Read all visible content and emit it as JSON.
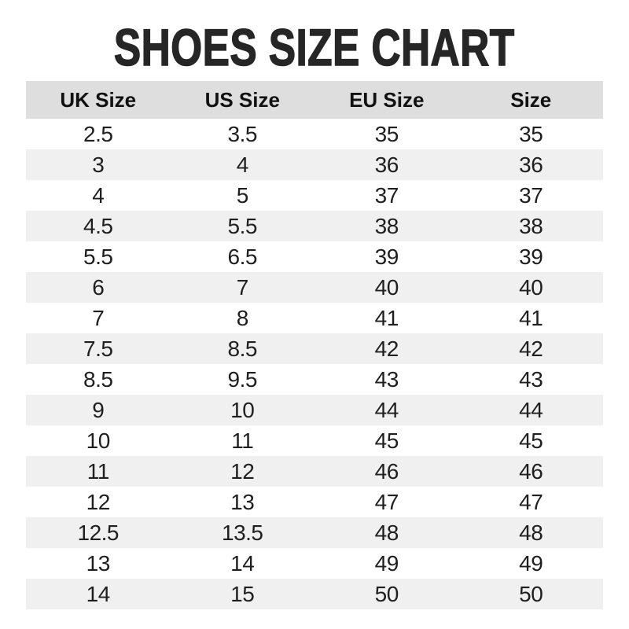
{
  "title": "SHOES SIZE CHART",
  "colors": {
    "header_bg": "#dedede",
    "stripe_bg": "#f0f0f0",
    "title_text": "#262626",
    "cell_text": "#1f1f1f"
  },
  "chart_data": {
    "type": "table",
    "title": "SHOES SIZE CHART",
    "columns": [
      "UK Size",
      "US Size",
      "EU Size",
      "Size"
    ],
    "rows": [
      [
        "2.5",
        "3.5",
        "35",
        "35"
      ],
      [
        "3",
        "4",
        "36",
        "36"
      ],
      [
        "4",
        "5",
        "37",
        "37"
      ],
      [
        "4.5",
        "5.5",
        "38",
        "38"
      ],
      [
        "5.5",
        "6.5",
        "39",
        "39"
      ],
      [
        "6",
        "7",
        "40",
        "40"
      ],
      [
        "7",
        "8",
        "41",
        "41"
      ],
      [
        "7.5",
        "8.5",
        "42",
        "42"
      ],
      [
        "8.5",
        "9.5",
        "43",
        "43"
      ],
      [
        "9",
        "10",
        "44",
        "44"
      ],
      [
        "10",
        "11",
        "45",
        "45"
      ],
      [
        "11",
        "12",
        "46",
        "46"
      ],
      [
        "12",
        "13",
        "47",
        "47"
      ],
      [
        "12.5",
        "13.5",
        "48",
        "48"
      ],
      [
        "13",
        "14",
        "49",
        "49"
      ],
      [
        "14",
        "15",
        "50",
        "50"
      ]
    ],
    "layout": {
      "header_background": "#dedede",
      "zebra_striping": "even rows #f0f0f0, odd rows #ffffff",
      "alignment": "center"
    }
  }
}
